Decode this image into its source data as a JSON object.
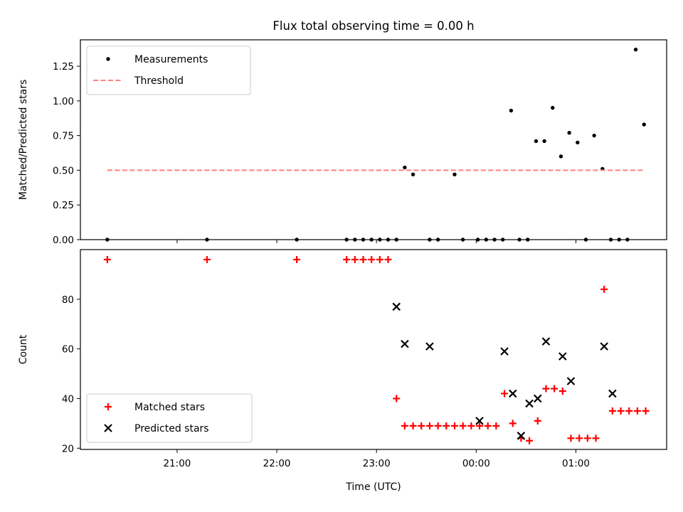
{
  "chart_data": [
    {
      "type": "scatter",
      "title": "Flux total observing time = 0.00 h",
      "xlabel": "",
      "ylabel": "Matched/Predicted stars",
      "ylim": [
        0,
        1.44
      ],
      "yticks": [
        "0.00",
        "0.25",
        "0.50",
        "0.75",
        "1.00",
        "1.25"
      ],
      "grid": false,
      "legend_position": "top-left",
      "series": [
        {
          "name": "Measurements",
          "marker": "dot",
          "color": "#000000",
          "x": [
            "20:18",
            "21:18",
            "22:12",
            "22:42",
            "22:47",
            "22:52",
            "22:57",
            "23:02",
            "23:07",
            "23:12",
            "23:17",
            "23:22",
            "23:32",
            "23:37",
            "23:47",
            "23:52",
            "24:01",
            "24:06",
            "24:11",
            "24:16",
            "24:21",
            "24:26",
            "24:31",
            "24:36",
            "24:41",
            "24:46",
            "24:51",
            "24:56",
            "25:01",
            "25:06",
            "25:11",
            "25:16",
            "25:21",
            "25:26",
            "25:31",
            "25:36",
            "25:41"
          ],
          "values": [
            0,
            0,
            0,
            0,
            0,
            0,
            0,
            0,
            0,
            0,
            0.52,
            0.47,
            0,
            0,
            0.47,
            0,
            0,
            0,
            0,
            0,
            0.93,
            0,
            0,
            0.71,
            0.71,
            0.95,
            0.6,
            0.77,
            0.7,
            0,
            0.75,
            0.51,
            0,
            0,
            0,
            1.37,
            0.83
          ]
        },
        {
          "name": "Threshold",
          "style": "dashed",
          "color": "#ff7f7f",
          "x": [
            "20:18",
            "25:41"
          ],
          "values": [
            0.5,
            0.5
          ]
        }
      ]
    },
    {
      "type": "scatter",
      "title": "",
      "xlabel": "Time (UTC)",
      "ylabel": "Count",
      "ylim": [
        19.5,
        100
      ],
      "yticks": [
        "20",
        "40",
        "60",
        "80"
      ],
      "x_ticks": [
        "21:00",
        "22:00",
        "23:00",
        "00:00",
        "01:00"
      ],
      "grid": false,
      "legend_position": "bottom-left",
      "series": [
        {
          "name": "Matched stars",
          "marker": "plus",
          "color": "#ff0000",
          "x": [
            "20:18",
            "21:18",
            "22:12",
            "22:42",
            "22:47",
            "22:52",
            "22:57",
            "23:02",
            "23:07",
            "23:12",
            "23:17",
            "23:22",
            "23:27",
            "23:32",
            "23:37",
            "23:42",
            "23:47",
            "23:52",
            "23:57",
            "24:02",
            "24:07",
            "24:12",
            "24:17",
            "24:22",
            "24:27",
            "24:32",
            "24:37",
            "24:42",
            "24:47",
            "24:52",
            "24:57",
            "25:02",
            "25:07",
            "25:12",
            "25:17",
            "25:22",
            "25:27",
            "25:32",
            "25:37",
            "25:42"
          ],
          "values": [
            96,
            96,
            96,
            96,
            96,
            96,
            96,
            96,
            96,
            40,
            29,
            29,
            29,
            29,
            29,
            29,
            29,
            29,
            29,
            29,
            29,
            29,
            42,
            30,
            24,
            23,
            31,
            44,
            44,
            43,
            24,
            24,
            24,
            24,
            84,
            35,
            35,
            35,
            35,
            35
          ]
        },
        {
          "name": "Predicted stars",
          "marker": "x",
          "color": "#000000",
          "x": [
            "23:12",
            "23:17",
            "23:32",
            "24:02",
            "24:17",
            "24:22",
            "24:27",
            "24:32",
            "24:37",
            "24:42",
            "24:52",
            "24:57",
            "25:17",
            "25:22"
          ],
          "values": [
            77,
            62,
            61,
            31,
            59,
            42,
            25,
            38,
            40,
            63,
            57,
            47,
            61,
            42
          ]
        }
      ]
    }
  ]
}
